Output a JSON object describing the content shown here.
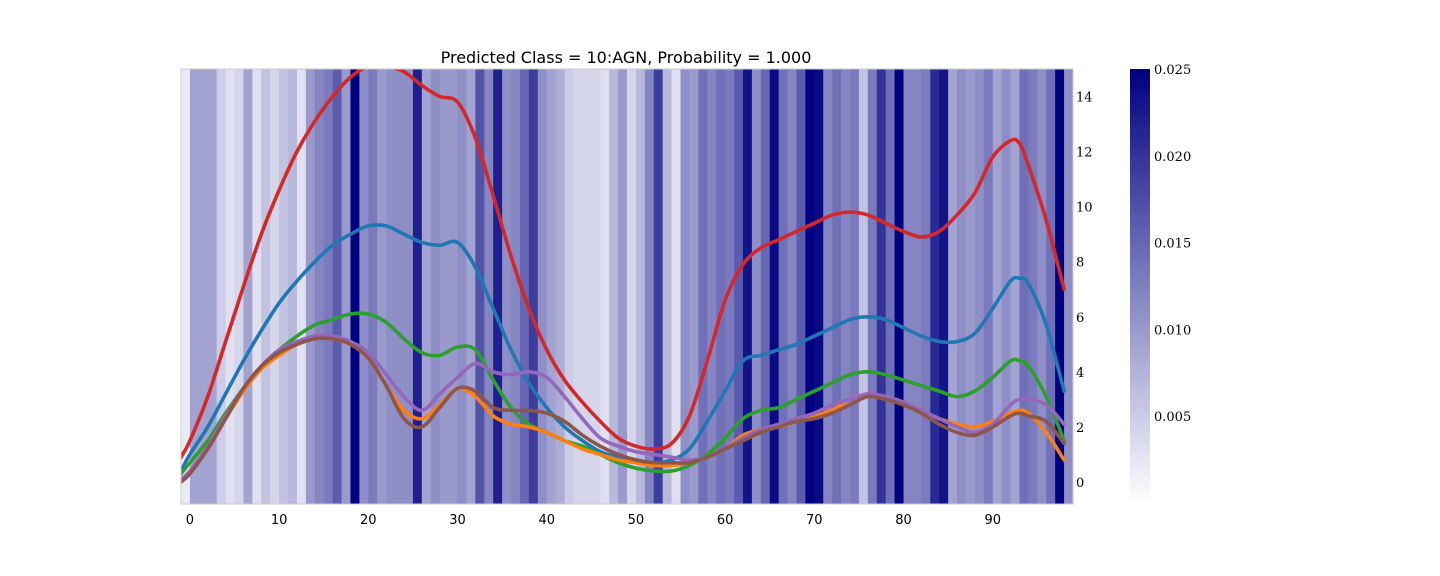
{
  "chart_data": {
    "type": "line",
    "title": "Predicted Class = 10:AGN, Probability = 1.000",
    "xlabel": "",
    "ylabel": "",
    "xlim": [
      -1,
      99
    ],
    "ylim": [
      -0.8,
      15.0
    ],
    "xticks": [
      0,
      10,
      20,
      30,
      40,
      50,
      60,
      70,
      80,
      90
    ],
    "xtick_labels": [
      "0",
      "10",
      "20",
      "30",
      "40",
      "50",
      "60",
      "70",
      "80",
      "90"
    ],
    "yticks": [
      0,
      2,
      4,
      6,
      8,
      10,
      12,
      14
    ],
    "ytick_labels": [
      "0",
      "2",
      "4",
      "6",
      "8",
      "10",
      "12",
      "14"
    ],
    "y_axis_side": "right",
    "grid": false,
    "legend": "none",
    "heatmap": {
      "description_free": true,
      "cmap": [
        "#ffffff",
        "#000080"
      ],
      "vmin": 0.0,
      "vmax": 0.025,
      "colorbar_ticks": [
        0.005,
        0.01,
        0.015,
        0.02,
        0.025
      ],
      "colorbar_tick_labels": [
        "0.005",
        "0.010",
        "0.015",
        "0.020",
        "0.025"
      ],
      "values": [
        0.002,
        0.009,
        0.009,
        0.009,
        0.005,
        0.003,
        0.004,
        0.009,
        0.003,
        0.006,
        0.004,
        0.006,
        0.007,
        0.003,
        0.01,
        0.012,
        0.013,
        0.016,
        0.01,
        0.025,
        0.011,
        0.013,
        0.01,
        0.011,
        0.011,
        0.011,
        0.022,
        0.009,
        0.011,
        0.01,
        0.01,
        0.011,
        0.009,
        0.017,
        0.012,
        0.022,
        0.011,
        0.012,
        0.015,
        0.019,
        0.011,
        0.009,
        0.008,
        0.005,
        0.004,
        0.004,
        0.004,
        0.003,
        0.007,
        0.01,
        0.004,
        0.007,
        0.012,
        0.019,
        0.007,
        0.003,
        0.011,
        0.01,
        0.014,
        0.012,
        0.014,
        0.013,
        0.016,
        0.023,
        0.011,
        0.015,
        0.024,
        0.014,
        0.012,
        0.016,
        0.025,
        0.024,
        0.012,
        0.014,
        0.012,
        0.013,
        0.006,
        0.013,
        0.02,
        0.014,
        0.025,
        0.012,
        0.012,
        0.013,
        0.021,
        0.023,
        0.009,
        0.011,
        0.01,
        0.011,
        0.013,
        0.009,
        0.011,
        0.009,
        0.014,
        0.013,
        0.011,
        0.014,
        0.025,
        0.011
      ]
    },
    "series": [
      {
        "color": "#d62728",
        "x": [
          -1,
          0,
          2,
          4,
          6,
          8,
          10,
          12,
          14,
          16,
          18,
          20,
          22,
          24,
          26,
          28,
          30,
          32,
          34,
          36,
          38,
          40,
          42,
          44,
          46,
          48,
          50,
          52,
          54,
          56,
          58,
          60,
          62,
          64,
          66,
          68,
          70,
          72,
          74,
          76,
          78,
          80,
          82,
          84,
          86,
          88,
          90,
          92,
          93,
          94,
          96,
          98
        ],
        "values": [
          0.9,
          1.5,
          3.1,
          5.1,
          7.1,
          9.0,
          10.6,
          12.0,
          13.1,
          14.0,
          14.7,
          15.1,
          15.1,
          14.9,
          14.4,
          14.0,
          13.8,
          12.5,
          10.4,
          8.2,
          6.3,
          4.8,
          3.7,
          2.9,
          2.2,
          1.6,
          1.3,
          1.2,
          1.4,
          2.4,
          4.4,
          6.6,
          7.9,
          8.5,
          8.8,
          9.1,
          9.4,
          9.7,
          9.8,
          9.7,
          9.4,
          9.1,
          8.9,
          9.1,
          9.7,
          10.5,
          11.8,
          12.4,
          12.3,
          11.5,
          9.5,
          7.0
        ]
      },
      {
        "color": "#1f77b4",
        "x": [
          -1,
          0,
          2,
          4,
          6,
          8,
          10,
          12,
          14,
          16,
          18,
          20,
          22,
          24,
          26,
          28,
          30,
          32,
          34,
          36,
          38,
          40,
          42,
          44,
          46,
          48,
          50,
          52,
          54,
          56,
          58,
          60,
          62,
          64,
          66,
          68,
          70,
          72,
          74,
          76,
          78,
          80,
          82,
          84,
          86,
          88,
          90,
          92,
          93,
          94,
          96,
          98
        ],
        "values": [
          0.4,
          1.0,
          2.0,
          3.2,
          4.4,
          5.5,
          6.5,
          7.3,
          8.0,
          8.6,
          9.0,
          9.3,
          9.3,
          9.0,
          8.7,
          8.6,
          8.7,
          7.8,
          6.3,
          4.8,
          3.6,
          2.7,
          2.0,
          1.5,
          1.1,
          0.9,
          0.8,
          0.7,
          0.8,
          1.2,
          2.2,
          3.3,
          4.4,
          4.6,
          4.8,
          5.0,
          5.3,
          5.6,
          5.9,
          6.0,
          5.9,
          5.6,
          5.3,
          5.1,
          5.1,
          5.4,
          6.3,
          7.3,
          7.4,
          7.2,
          5.7,
          3.3
        ]
      },
      {
        "color": "#2ca02c",
        "x": [
          -1,
          0,
          2,
          4,
          6,
          8,
          10,
          12,
          14,
          16,
          18,
          20,
          22,
          24,
          26,
          28,
          30,
          32,
          34,
          36,
          38,
          40,
          42,
          44,
          46,
          48,
          50,
          52,
          54,
          56,
          58,
          60,
          62,
          64,
          66,
          68,
          70,
          72,
          74,
          76,
          78,
          80,
          82,
          84,
          86,
          88,
          90,
          92,
          93,
          94,
          96,
          98
        ],
        "values": [
          0.3,
          0.7,
          1.5,
          2.5,
          3.4,
          4.2,
          4.8,
          5.3,
          5.7,
          5.9,
          6.1,
          6.1,
          5.8,
          5.2,
          4.7,
          4.6,
          4.9,
          4.8,
          3.7,
          2.7,
          2.1,
          1.8,
          1.5,
          1.3,
          1.0,
          0.7,
          0.5,
          0.4,
          0.4,
          0.6,
          1.0,
          1.6,
          2.3,
          2.6,
          2.7,
          3.0,
          3.3,
          3.6,
          3.9,
          4.0,
          3.9,
          3.7,
          3.5,
          3.3,
          3.1,
          3.3,
          3.8,
          4.4,
          4.4,
          4.2,
          3.1,
          1.5
        ]
      },
      {
        "color": "#ff7f0e",
        "x": [
          -1,
          0,
          2,
          4,
          6,
          8,
          10,
          12,
          14,
          16,
          18,
          20,
          22,
          24,
          26,
          28,
          30,
          32,
          34,
          36,
          38,
          40,
          42,
          44,
          46,
          48,
          50,
          52,
          54,
          56,
          58,
          60,
          62,
          64,
          66,
          68,
          70,
          72,
          74,
          76,
          78,
          80,
          82,
          84,
          86,
          88,
          90,
          92,
          93,
          94,
          96,
          98
        ],
        "values": [
          0.0,
          0.4,
          1.2,
          2.3,
          3.3,
          4.1,
          4.6,
          5.0,
          5.2,
          5.2,
          5.0,
          4.5,
          3.5,
          2.6,
          2.3,
          2.8,
          3.4,
          3.1,
          2.4,
          2.1,
          2.0,
          1.8,
          1.5,
          1.2,
          1.0,
          0.8,
          0.7,
          0.6,
          0.6,
          0.7,
          0.9,
          1.2,
          1.7,
          1.9,
          2.0,
          2.2,
          2.4,
          2.6,
          3.0,
          3.2,
          3.1,
          2.9,
          2.6,
          2.3,
          2.1,
          2.0,
          2.2,
          2.5,
          2.6,
          2.5,
          1.8,
          0.8
        ]
      },
      {
        "color": "#9467bd",
        "x": [
          -1,
          0,
          2,
          4,
          6,
          8,
          10,
          12,
          14,
          16,
          18,
          20,
          22,
          24,
          26,
          28,
          30,
          32,
          34,
          36,
          38,
          40,
          42,
          44,
          46,
          48,
          50,
          52,
          54,
          56,
          58,
          60,
          62,
          64,
          66,
          68,
          70,
          72,
          74,
          76,
          78,
          80,
          82,
          84,
          86,
          88,
          90,
          92,
          93,
          94,
          96,
          98
        ],
        "values": [
          0.1,
          0.4,
          1.3,
          2.4,
          3.4,
          4.2,
          4.8,
          5.1,
          5.3,
          5.3,
          5.1,
          4.7,
          3.9,
          3.1,
          2.6,
          3.2,
          3.8,
          4.3,
          4.0,
          3.9,
          4.0,
          3.8,
          3.1,
          2.3,
          1.6,
          1.3,
          1.1,
          1.0,
          0.9,
          0.8,
          0.9,
          1.2,
          1.6,
          1.9,
          2.1,
          2.3,
          2.5,
          2.8,
          3.0,
          3.2,
          3.1,
          2.9,
          2.6,
          2.3,
          2.0,
          1.8,
          2.1,
          2.8,
          3.0,
          3.0,
          2.8,
          2.1
        ]
      },
      {
        "color": "#8c564b",
        "x": [
          -1,
          0,
          2,
          4,
          6,
          8,
          10,
          12,
          14,
          16,
          18,
          20,
          22,
          24,
          26,
          28,
          30,
          32,
          34,
          36,
          38,
          40,
          42,
          44,
          46,
          48,
          50,
          52,
          54,
          56,
          58,
          60,
          62,
          64,
          66,
          68,
          70,
          72,
          74,
          76,
          78,
          80,
          82,
          84,
          86,
          88,
          90,
          92,
          93,
          94,
          96,
          98
        ],
        "values": [
          0.0,
          0.3,
          1.2,
          2.3,
          3.4,
          4.2,
          4.7,
          5.0,
          5.2,
          5.2,
          5.0,
          4.5,
          3.5,
          2.3,
          2.0,
          2.7,
          3.4,
          3.3,
          2.7,
          2.6,
          2.6,
          2.5,
          2.2,
          1.7,
          1.3,
          1.0,
          0.8,
          0.7,
          0.7,
          0.7,
          0.9,
          1.2,
          1.5,
          1.8,
          2.0,
          2.2,
          2.3,
          2.5,
          2.8,
          3.1,
          3.0,
          2.8,
          2.5,
          2.1,
          1.8,
          1.7,
          2.0,
          2.4,
          2.5,
          2.4,
          2.2,
          1.4
        ]
      }
    ]
  }
}
